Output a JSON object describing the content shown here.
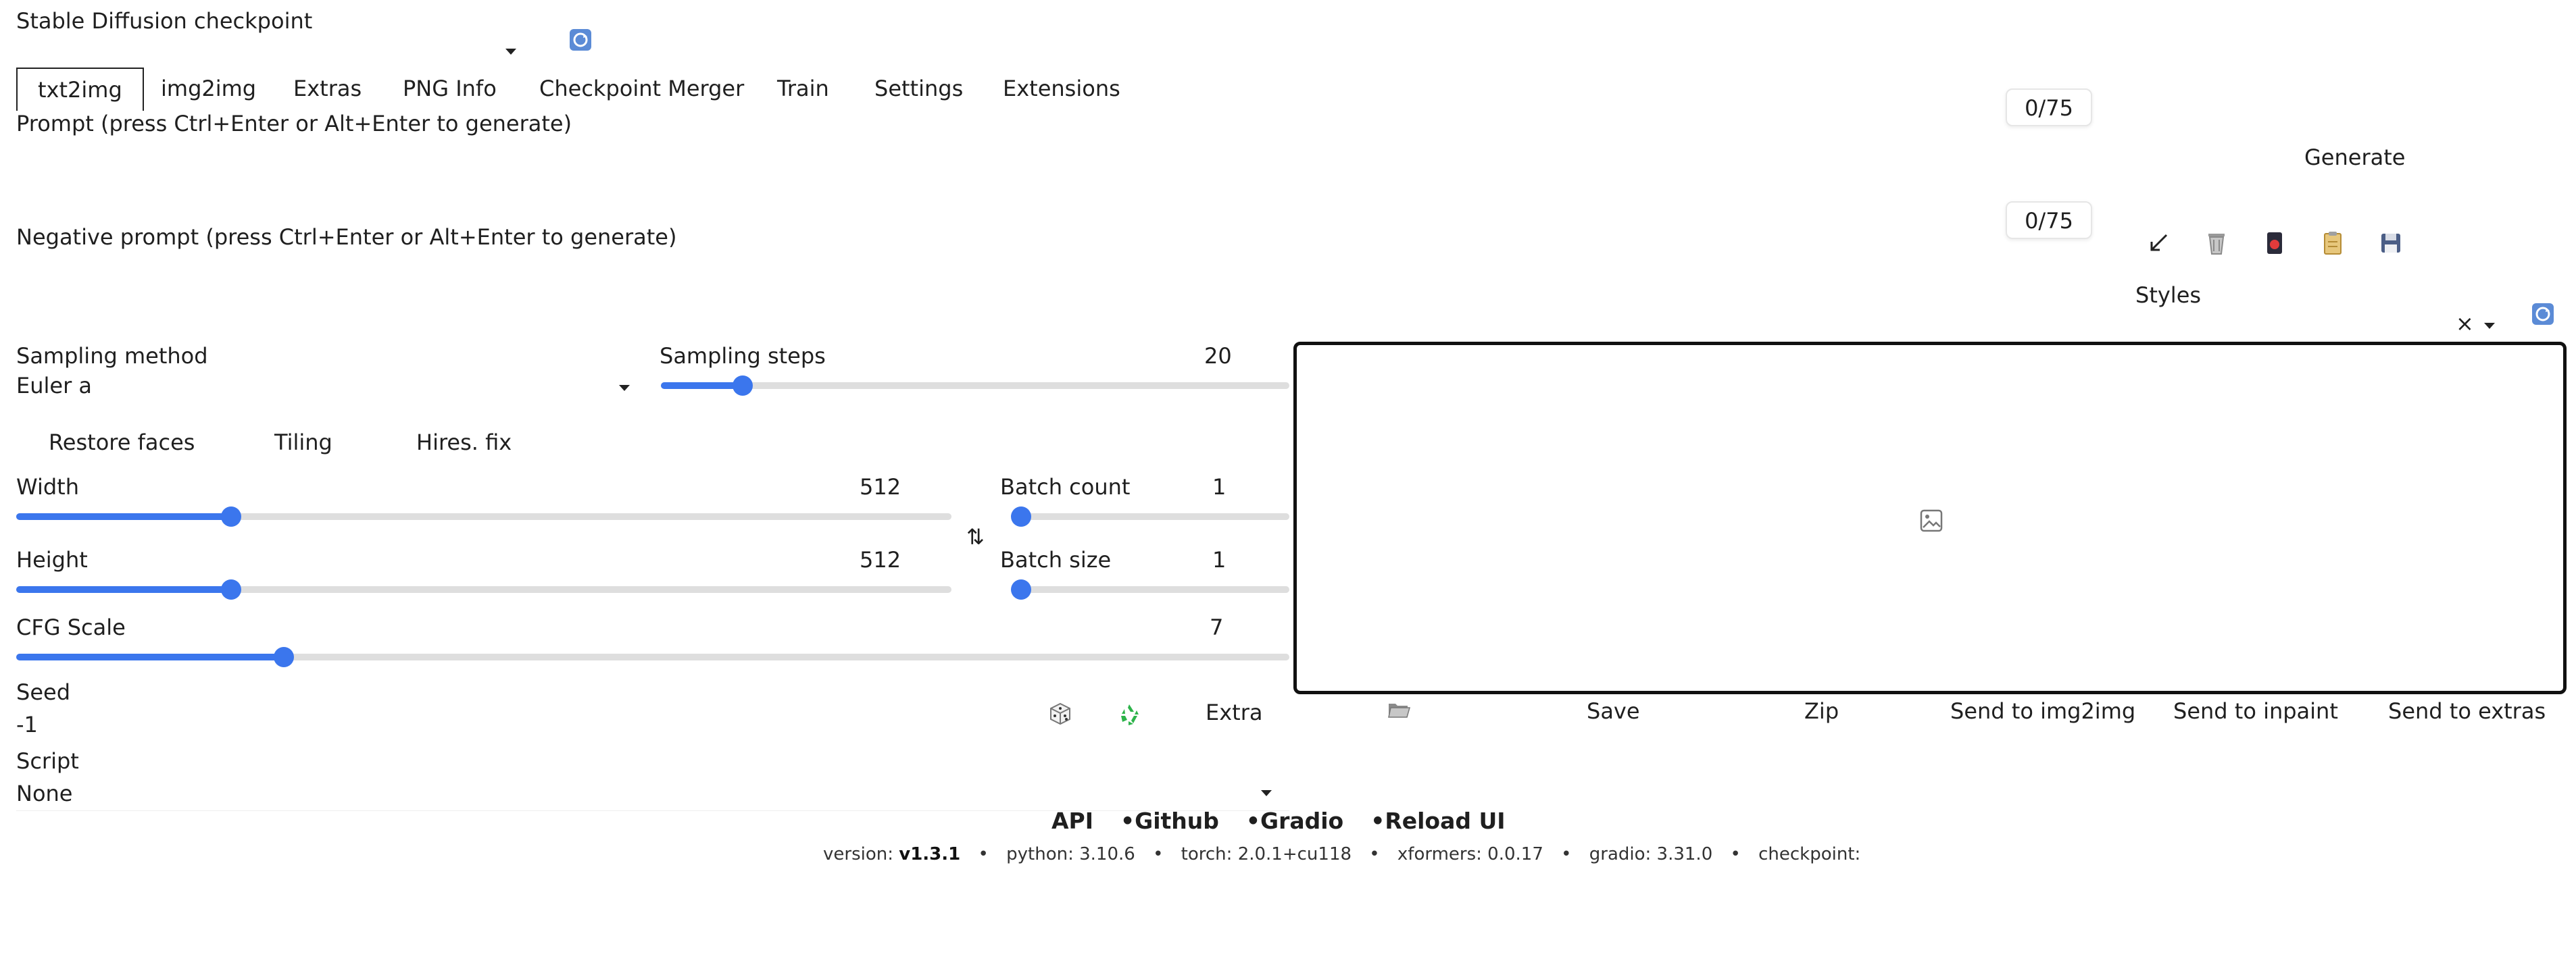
{
  "checkpoint": {
    "label": "Stable Diffusion checkpoint"
  },
  "tabs": [
    "txt2img",
    "img2img",
    "Extras",
    "PNG Info",
    "Checkpoint Merger",
    "Train",
    "Settings",
    "Extensions"
  ],
  "prompt": {
    "label": "Prompt (press Ctrl+Enter or Alt+Enter to generate)",
    "counter": "0/75"
  },
  "negative_prompt": {
    "label": "Negative prompt (press Ctrl+Enter or Alt+Enter to generate)",
    "counter": "0/75"
  },
  "generate_label": "Generate",
  "styles": {
    "label": "Styles",
    "clear_symbol": "×"
  },
  "sampling": {
    "method_label": "Sampling method",
    "method_value": "Euler a",
    "steps_label": "Sampling steps",
    "steps_value": "20",
    "steps_fraction": 0.13
  },
  "options": {
    "restore_faces": "Restore faces",
    "tiling": "Tiling",
    "hires_fix": "Hires. fix"
  },
  "width": {
    "label": "Width",
    "value": "512",
    "fraction": 0.23
  },
  "height": {
    "label": "Height",
    "value": "512",
    "fraction": 0.23
  },
  "swap_symbol": "⇅",
  "batch_count": {
    "label": "Batch count",
    "value": "1",
    "fraction": 0.0
  },
  "batch_size": {
    "label": "Batch size",
    "value": "1",
    "fraction": 0.0
  },
  "cfg": {
    "label": "CFG Scale",
    "value": "7",
    "fraction": 0.21
  },
  "seed": {
    "label": "Seed",
    "value": "-1",
    "extra_label": "Extra"
  },
  "script": {
    "label": "Script",
    "value": "None"
  },
  "output_buttons": {
    "save": "Save",
    "zip": "Zip",
    "send_img2img": "Send to img2img",
    "send_inpaint": "Send to inpaint",
    "send_extras": "Send to extras"
  },
  "footer": {
    "links": [
      "API",
      "Github",
      "Gradio",
      "Reload UI"
    ],
    "separator": "•",
    "version_label": "version:",
    "version_value": "v1.3.1",
    "python": "python: 3.10.6",
    "torch": "torch: 2.0.1+cu118",
    "xformers": "xformers: 0.0.17",
    "gradio": "gradio: 3.31.0",
    "checkpoint": "checkpoint:"
  },
  "colors": {
    "accent": "#3b76ed",
    "track": "#dedede"
  },
  "icons": [
    "refresh-icon",
    "arrow-icon",
    "trash-icon",
    "style-card-icon",
    "clipboard-icon",
    "save-icon",
    "dice-icon",
    "recycle-icon",
    "folder-icon",
    "image-placeholder-icon"
  ]
}
